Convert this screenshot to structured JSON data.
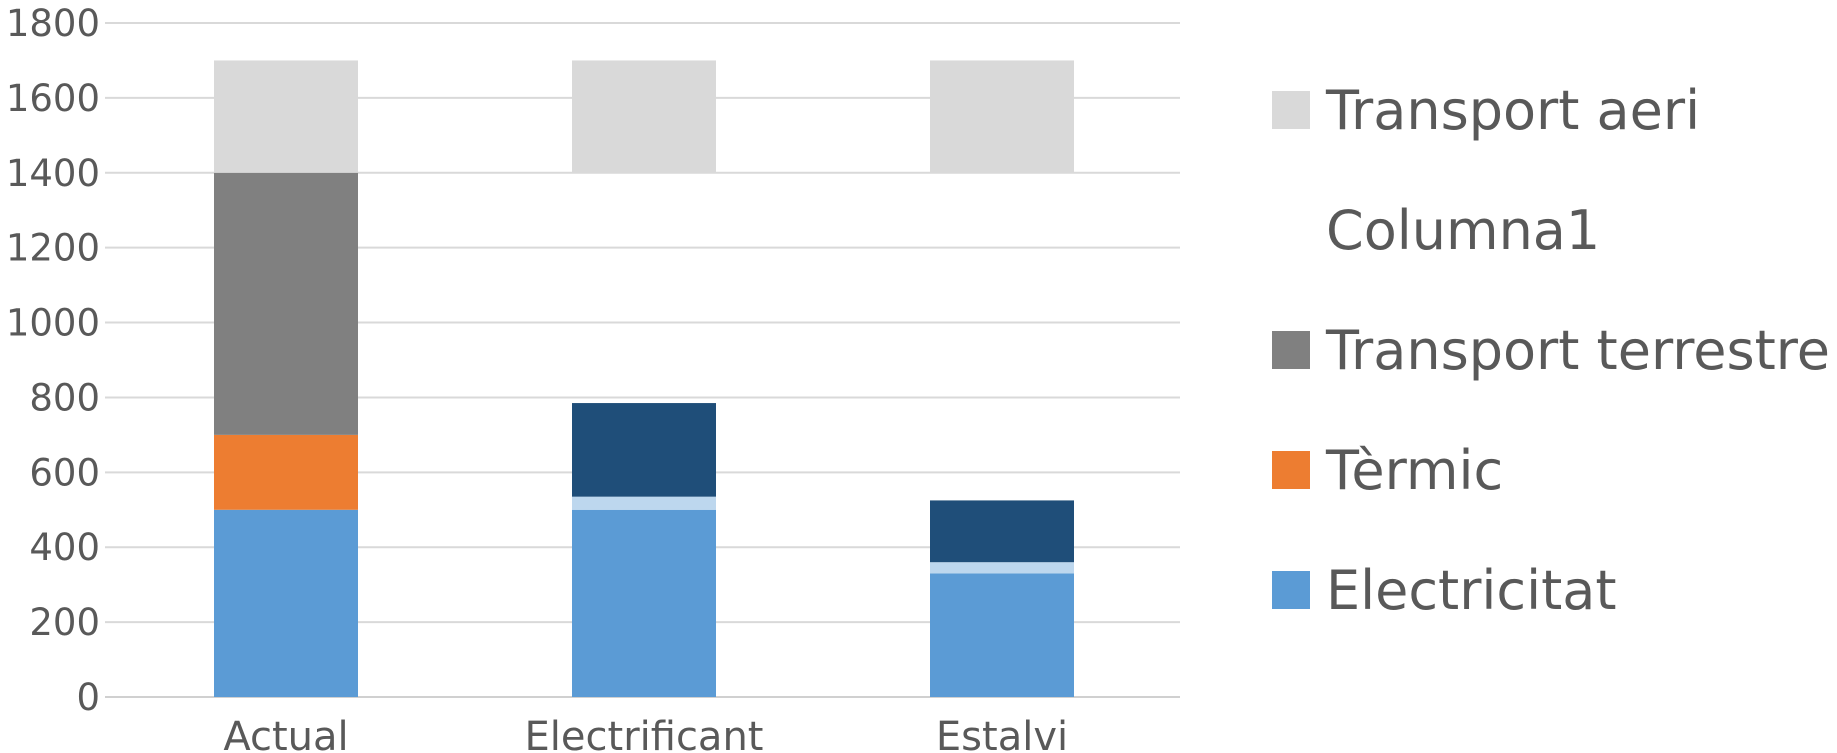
{
  "chart_data": {
    "type": "bar",
    "stacked": true,
    "categories": [
      "Actual",
      "Electrificant",
      "Estalvi"
    ],
    "ylim": [
      0,
      1800
    ],
    "yticks": [
      0,
      200,
      400,
      600,
      800,
      1000,
      1200,
      1400,
      1600,
      1800
    ],
    "grid": true,
    "legend_position": "right",
    "segments": [
      {
        "category": "Actual",
        "color": "#5b9bd5",
        "from": 0,
        "to": 500
      },
      {
        "category": "Actual",
        "color": "#ed7d31",
        "from": 500,
        "to": 700
      },
      {
        "category": "Actual",
        "color": "#808080",
        "from": 700,
        "to": 1400
      },
      {
        "category": "Actual",
        "color": "#d9d9d9",
        "from": 1400,
        "to": 1700
      },
      {
        "category": "Electrificant",
        "color": "#5b9bd5",
        "from": 0,
        "to": 500
      },
      {
        "category": "Electrificant",
        "color": "#bdd7ee",
        "from": 500,
        "to": 535
      },
      {
        "category": "Electrificant",
        "color": "#1f4e79",
        "from": 535,
        "to": 785
      },
      {
        "category": "Electrificant",
        "color": "#d9d9d9",
        "from": 1400,
        "to": 1700
      },
      {
        "category": "Estalvi",
        "color": "#5b9bd5",
        "from": 0,
        "to": 330
      },
      {
        "category": "Estalvi",
        "color": "#bdd7ee",
        "from": 330,
        "to": 360
      },
      {
        "category": "Estalvi",
        "color": "#1f4e79",
        "from": 360,
        "to": 525
      },
      {
        "category": "Estalvi",
        "color": "#d9d9d9",
        "from": 1400,
        "to": 1700
      }
    ],
    "legend": [
      {
        "name": "Transport aeri",
        "color": "#d9d9d9"
      },
      {
        "name": "Columna1",
        "color": ""
      },
      {
        "name": "Transport terrestre",
        "color": "#808080"
      },
      {
        "name": "Tèrmic",
        "color": "#ed7d31"
      },
      {
        "name": "Electricitat",
        "color": "#5b9bd5"
      }
    ]
  }
}
